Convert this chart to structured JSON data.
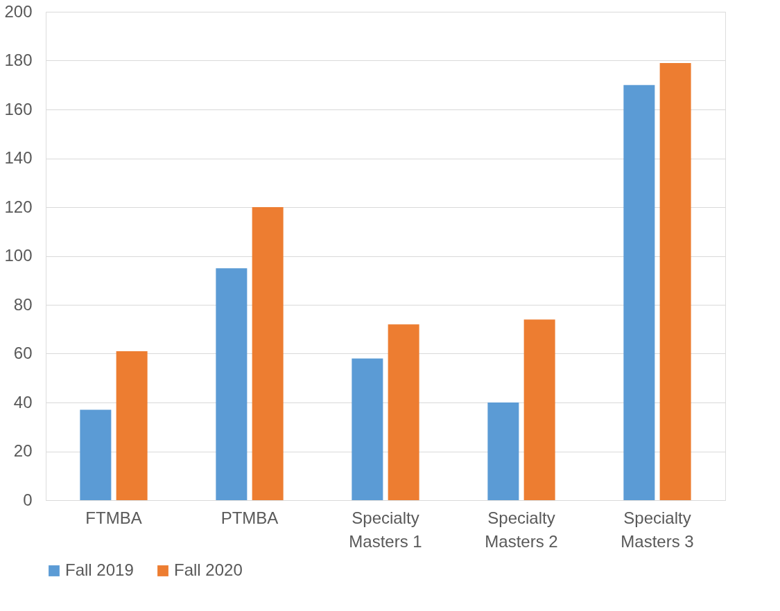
{
  "chart_data": {
    "type": "bar",
    "categories": [
      "FTMBA",
      "PTMBA",
      "Specialty Masters 1",
      "Specialty Masters 2",
      "Specialty Masters 3"
    ],
    "series": [
      {
        "name": "Fall 2019",
        "color": "#5b9bd5",
        "values": [
          37,
          95,
          58,
          40,
          170
        ]
      },
      {
        "name": "Fall 2020",
        "color": "#ed7d31",
        "values": [
          61,
          120,
          72,
          74,
          179
        ]
      }
    ],
    "ylim": [
      0,
      200
    ],
    "yticks": [
      0,
      20,
      40,
      60,
      80,
      100,
      120,
      140,
      160,
      180,
      200
    ],
    "grid": "y",
    "legend": "bottom"
  }
}
